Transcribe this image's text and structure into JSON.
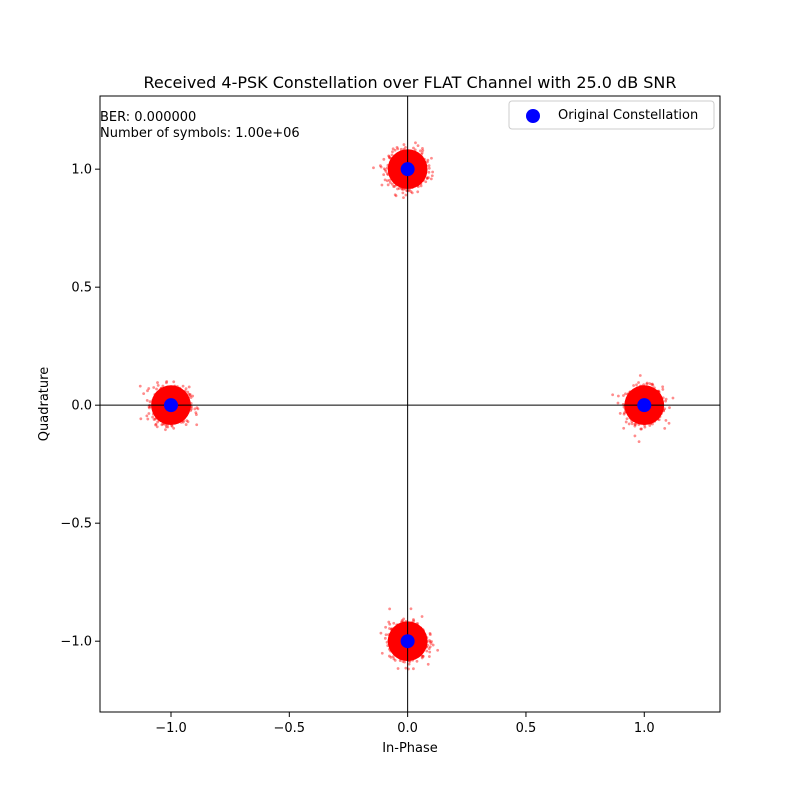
{
  "chart_data": {
    "type": "scatter",
    "title": "Received 4-PSK Constellation over FLAT Channel with 25.0 dB SNR",
    "xlabel": "In-Phase",
    "ylabel": "Quadrature",
    "xlim": [
      -1.3,
      1.32
    ],
    "ylim": [
      -1.3,
      1.31
    ],
    "xticks": [
      -1.0,
      -0.5,
      0.0,
      0.5,
      1.0
    ],
    "xtick_labels": [
      "−1.0",
      "−0.5",
      "0.0",
      "0.5",
      "1.0"
    ],
    "yticks": [
      -1.0,
      -0.5,
      0.0,
      0.5,
      1.0
    ],
    "ytick_labels": [
      "−1.0",
      "−0.5",
      "0.0",
      "0.5",
      "1.0"
    ],
    "grid": false,
    "annotations": [
      "BER: 0.000000",
      "Number of symbols: 1.00e+06"
    ],
    "legend": {
      "placement": "top-right"
    },
    "series": [
      {
        "name": "",
        "role": "received-symbols",
        "color": "#ff0000",
        "centers": [
          [
            1.0,
            0.0
          ],
          [
            0.0,
            1.0
          ],
          [
            -1.0,
            0.0
          ],
          [
            0.0,
            -1.0
          ]
        ],
        "spread": 0.08
      },
      {
        "name": "Original Constellation",
        "role": "original-constellation",
        "color": "#0000ff",
        "x": [
          1.0,
          0.0,
          -1.0,
          0.0
        ],
        "y": [
          0.0,
          1.0,
          0.0,
          -1.0
        ]
      }
    ]
  }
}
